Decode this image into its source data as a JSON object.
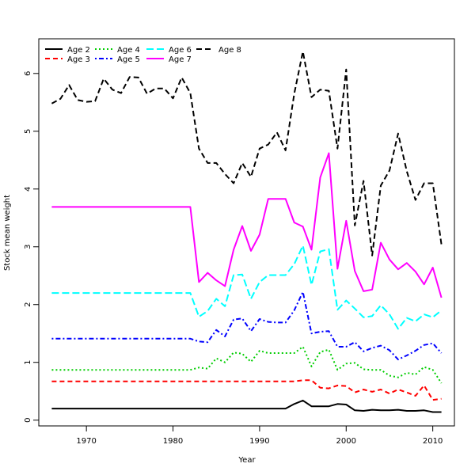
{
  "chart_data": {
    "type": "line",
    "xlabel": "Year",
    "ylabel": "Stock mean weight",
    "xlim": [
      1964.5,
      2012.5
    ],
    "ylim": [
      -0.1,
      6.6
    ],
    "x_ticks": [
      1970,
      1980,
      1990,
      2000,
      2010
    ],
    "y_ticks": [
      0,
      1,
      2,
      3,
      4,
      5,
      6
    ],
    "legend_position": "top-left",
    "x": [
      1966,
      1967,
      1968,
      1969,
      1970,
      1971,
      1972,
      1973,
      1974,
      1975,
      1976,
      1977,
      1978,
      1979,
      1980,
      1981,
      1982,
      1983,
      1984,
      1985,
      1986,
      1987,
      1988,
      1989,
      1990,
      1991,
      1992,
      1993,
      1994,
      1995,
      1996,
      1997,
      1998,
      1999,
      2000,
      2001,
      2002,
      2003,
      2004,
      2005,
      2006,
      2007,
      2008,
      2009,
      2010,
      2011
    ],
    "series": [
      {
        "name": "Age 2",
        "color": "#000000",
        "dash": "solid",
        "values": [
          0.2,
          0.2,
          0.2,
          0.2,
          0.2,
          0.2,
          0.2,
          0.2,
          0.2,
          0.2,
          0.2,
          0.2,
          0.2,
          0.2,
          0.2,
          0.2,
          0.2,
          0.2,
          0.2,
          0.2,
          0.2,
          0.2,
          0.2,
          0.2,
          0.2,
          0.2,
          0.2,
          0.2,
          0.28,
          0.34,
          0.24,
          0.24,
          0.24,
          0.28,
          0.27,
          0.17,
          0.16,
          0.18,
          0.17,
          0.17,
          0.18,
          0.16,
          0.16,
          0.17,
          0.14,
          0.14
        ]
      },
      {
        "name": "Age 3",
        "color": "#ff0000",
        "dash": "dashed",
        "values": [
          0.67,
          0.67,
          0.67,
          0.67,
          0.67,
          0.67,
          0.67,
          0.67,
          0.67,
          0.67,
          0.67,
          0.67,
          0.67,
          0.67,
          0.67,
          0.67,
          0.67,
          0.67,
          0.67,
          0.67,
          0.67,
          0.67,
          0.67,
          0.67,
          0.67,
          0.67,
          0.67,
          0.67,
          0.67,
          0.69,
          0.69,
          0.56,
          0.55,
          0.6,
          0.59,
          0.48,
          0.53,
          0.49,
          0.53,
          0.46,
          0.53,
          0.48,
          0.42,
          0.6,
          0.35,
          0.37
        ]
      },
      {
        "name": "Age 4",
        "color": "#00cd00",
        "dash": "dotted",
        "values": [
          0.87,
          0.87,
          0.87,
          0.87,
          0.87,
          0.87,
          0.87,
          0.87,
          0.87,
          0.87,
          0.87,
          0.87,
          0.87,
          0.87,
          0.87,
          0.87,
          0.87,
          0.91,
          0.89,
          1.07,
          1.0,
          1.17,
          1.15,
          1.01,
          1.2,
          1.16,
          1.16,
          1.16,
          1.16,
          1.27,
          0.93,
          1.18,
          1.22,
          0.87,
          0.98,
          0.99,
          0.88,
          0.87,
          0.87,
          0.77,
          0.74,
          0.82,
          0.79,
          0.92,
          0.87,
          0.64
        ]
      },
      {
        "name": "Age 5",
        "color": "#0000ff",
        "dash": "dotdash",
        "values": [
          1.41,
          1.41,
          1.41,
          1.41,
          1.41,
          1.41,
          1.41,
          1.41,
          1.41,
          1.41,
          1.41,
          1.41,
          1.41,
          1.41,
          1.41,
          1.41,
          1.41,
          1.36,
          1.35,
          1.56,
          1.45,
          1.74,
          1.76,
          1.54,
          1.75,
          1.7,
          1.69,
          1.69,
          1.9,
          2.22,
          1.5,
          1.53,
          1.54,
          1.27,
          1.27,
          1.35,
          1.19,
          1.25,
          1.29,
          1.21,
          1.05,
          1.12,
          1.2,
          1.3,
          1.33,
          1.16
        ]
      },
      {
        "name": "Age 6",
        "color": "#00ffff",
        "dash": "longdash",
        "values": [
          2.2,
          2.2,
          2.2,
          2.2,
          2.2,
          2.2,
          2.2,
          2.2,
          2.2,
          2.2,
          2.2,
          2.2,
          2.2,
          2.2,
          2.2,
          2.2,
          2.2,
          1.79,
          1.89,
          2.1,
          1.97,
          2.51,
          2.52,
          2.1,
          2.39,
          2.51,
          2.51,
          2.51,
          2.7,
          3.02,
          2.34,
          2.92,
          2.96,
          1.91,
          2.07,
          1.93,
          1.78,
          1.8,
          1.99,
          1.83,
          1.58,
          1.77,
          1.71,
          1.83,
          1.78,
          1.9
        ]
      },
      {
        "name": "Age 7",
        "color": "#ff00ff",
        "dash": "solid",
        "values": [
          3.69,
          3.69,
          3.69,
          3.69,
          3.69,
          3.69,
          3.69,
          3.69,
          3.69,
          3.69,
          3.69,
          3.69,
          3.69,
          3.69,
          3.69,
          3.69,
          3.69,
          2.39,
          2.55,
          2.42,
          2.32,
          2.95,
          3.36,
          2.93,
          3.21,
          3.83,
          3.83,
          3.83,
          3.42,
          3.35,
          2.95,
          4.2,
          4.62,
          2.62,
          3.45,
          2.58,
          2.23,
          2.26,
          3.07,
          2.78,
          2.61,
          2.72,
          2.57,
          2.35,
          2.64,
          2.12
        ]
      },
      {
        "name": "Age 8",
        "color": "#000000",
        "dash": "bigdash",
        "values": [
          5.48,
          5.56,
          5.8,
          5.54,
          5.51,
          5.52,
          5.91,
          5.72,
          5.66,
          5.94,
          5.93,
          5.65,
          5.74,
          5.74,
          5.57,
          5.93,
          5.66,
          4.7,
          4.45,
          4.45,
          4.26,
          4.1,
          4.45,
          4.21,
          4.7,
          4.77,
          4.98,
          4.67,
          5.65,
          6.38,
          5.59,
          5.72,
          5.7,
          4.7,
          6.07,
          3.37,
          4.14,
          2.85,
          4.06,
          4.32,
          4.96,
          4.31,
          3.81,
          4.1,
          4.1,
          3.04
        ]
      }
    ]
  }
}
